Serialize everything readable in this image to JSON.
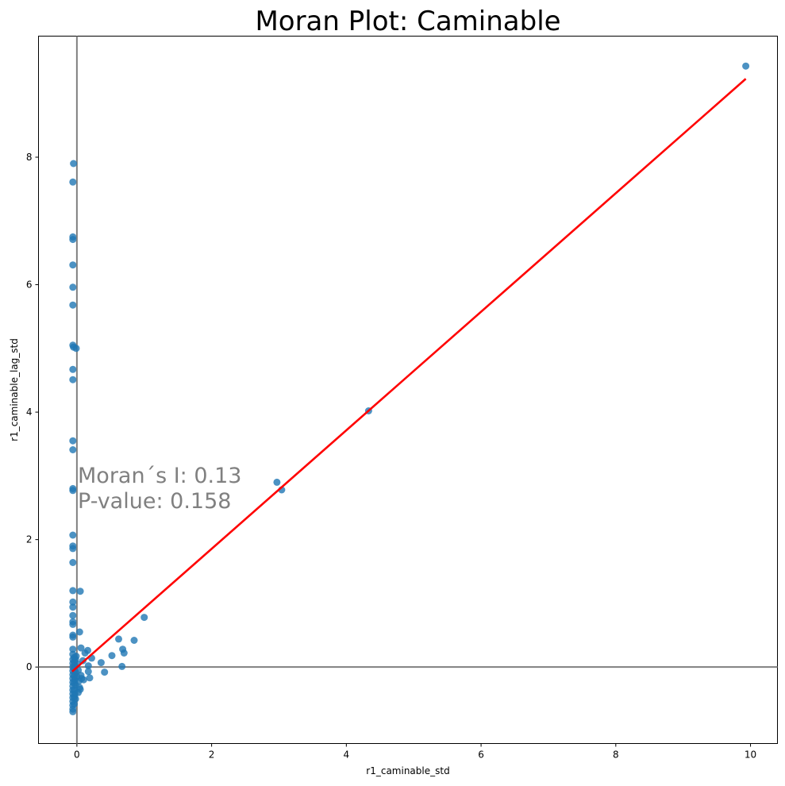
{
  "chart_data": {
    "type": "scatter",
    "title": "Moran Plot: Caminable",
    "xlabel": "r1_caminable_std",
    "ylabel": "r1_caminable_lag_std",
    "xlim": [
      -0.57,
      10.4
    ],
    "ylim": [
      -1.2,
      9.9
    ],
    "x_ticks": [
      0,
      2,
      4,
      6,
      8,
      10
    ],
    "y_ticks": [
      0,
      2,
      4,
      6,
      8
    ],
    "grid": false,
    "point_color": "#1f77b4",
    "fit_line_color": "#ff0000",
    "ref_line_color": "#808080",
    "reference_lines": {
      "x": 0,
      "y": 0
    },
    "fit_line": {
      "x": [
        -0.07,
        9.93
      ],
      "y": [
        -0.07,
        9.23
      ]
    },
    "annotations": [
      "Moran´s I: 0.13",
      "P-value: 0.158"
    ],
    "points": [
      [
        9.93,
        9.43
      ],
      [
        4.33,
        4.02
      ],
      [
        2.97,
        2.9
      ],
      [
        3.04,
        2.78
      ],
      [
        -0.05,
        7.9
      ],
      [
        -0.06,
        7.61
      ],
      [
        -0.06,
        6.75
      ],
      [
        -0.06,
        6.71
      ],
      [
        -0.06,
        6.31
      ],
      [
        -0.06,
        5.96
      ],
      [
        -0.06,
        5.68
      ],
      [
        -0.06,
        5.05
      ],
      [
        -0.05,
        5.02
      ],
      [
        -0.01,
        5.0
      ],
      [
        -0.06,
        4.67
      ],
      [
        -0.06,
        4.51
      ],
      [
        -0.06,
        3.55
      ],
      [
        -0.06,
        3.41
      ],
      [
        -0.06,
        2.8
      ],
      [
        -0.06,
        2.77
      ],
      [
        -0.06,
        2.07
      ],
      [
        -0.06,
        1.9
      ],
      [
        -0.06,
        1.86
      ],
      [
        -0.06,
        1.64
      ],
      [
        -0.06,
        1.2
      ],
      [
        0.05,
        1.19
      ],
      [
        -0.06,
        1.02
      ],
      [
        -0.06,
        0.94
      ],
      [
        -0.06,
        0.81
      ],
      [
        -0.06,
        0.71
      ],
      [
        -0.06,
        0.67
      ],
      [
        0.04,
        0.55
      ],
      [
        -0.06,
        0.5
      ],
      [
        -0.06,
        0.47
      ],
      [
        1.0,
        0.78
      ],
      [
        0.62,
        0.44
      ],
      [
        0.85,
        0.42
      ],
      [
        0.68,
        0.28
      ],
      [
        0.7,
        0.22
      ],
      [
        0.52,
        0.18
      ],
      [
        0.67,
        0.01
      ],
      [
        0.36,
        0.07
      ],
      [
        0.41,
        -0.08
      ],
      [
        0.22,
        0.14
      ],
      [
        0.16,
        0.26
      ],
      [
        0.12,
        0.22
      ],
      [
        0.06,
        0.3
      ],
      [
        0.09,
        0.1
      ],
      [
        0.17,
        0.02
      ],
      [
        0.17,
        -0.07
      ],
      [
        0.19,
        -0.17
      ],
      [
        0.1,
        -0.2
      ],
      [
        0.06,
        -0.13
      ],
      [
        0.05,
        -0.35
      ],
      [
        0.02,
        -0.4
      ],
      [
        -0.02,
        -0.28
      ],
      [
        -0.01,
        0.17
      ],
      [
        -0.06,
        0.28
      ],
      [
        -0.06,
        0.2
      ],
      [
        -0.06,
        0.12
      ],
      [
        -0.06,
        0.06
      ],
      [
        -0.06,
        0.0
      ],
      [
        -0.06,
        -0.06
      ],
      [
        -0.06,
        -0.12
      ],
      [
        -0.06,
        -0.18
      ],
      [
        -0.06,
        -0.24
      ],
      [
        -0.06,
        -0.3
      ],
      [
        -0.06,
        -0.36
      ],
      [
        -0.06,
        -0.42
      ],
      [
        -0.06,
        -0.48
      ],
      [
        -0.06,
        -0.54
      ],
      [
        -0.06,
        -0.6
      ],
      [
        -0.06,
        -0.66
      ],
      [
        -0.06,
        -0.7
      ],
      [
        -0.04,
        0.15
      ],
      [
        -0.04,
        0.08
      ],
      [
        -0.04,
        -0.03
      ],
      [
        -0.04,
        -0.14
      ],
      [
        -0.04,
        -0.25
      ],
      [
        -0.04,
        -0.36
      ],
      [
        -0.04,
        -0.47
      ],
      [
        -0.04,
        -0.58
      ],
      [
        -0.03,
        0.02
      ],
      [
        -0.03,
        -0.2
      ],
      [
        -0.03,
        -0.42
      ],
      [
        -0.02,
        0.12
      ],
      [
        -0.02,
        -0.08
      ],
      [
        -0.02,
        -0.5
      ],
      [
        0.0,
        -0.15
      ],
      [
        0.01,
        0.05
      ],
      [
        0.02,
        -0.05
      ],
      [
        0.03,
        -0.22
      ],
      [
        0.04,
        -0.32
      ],
      [
        0.07,
        -0.18
      ]
    ]
  }
}
